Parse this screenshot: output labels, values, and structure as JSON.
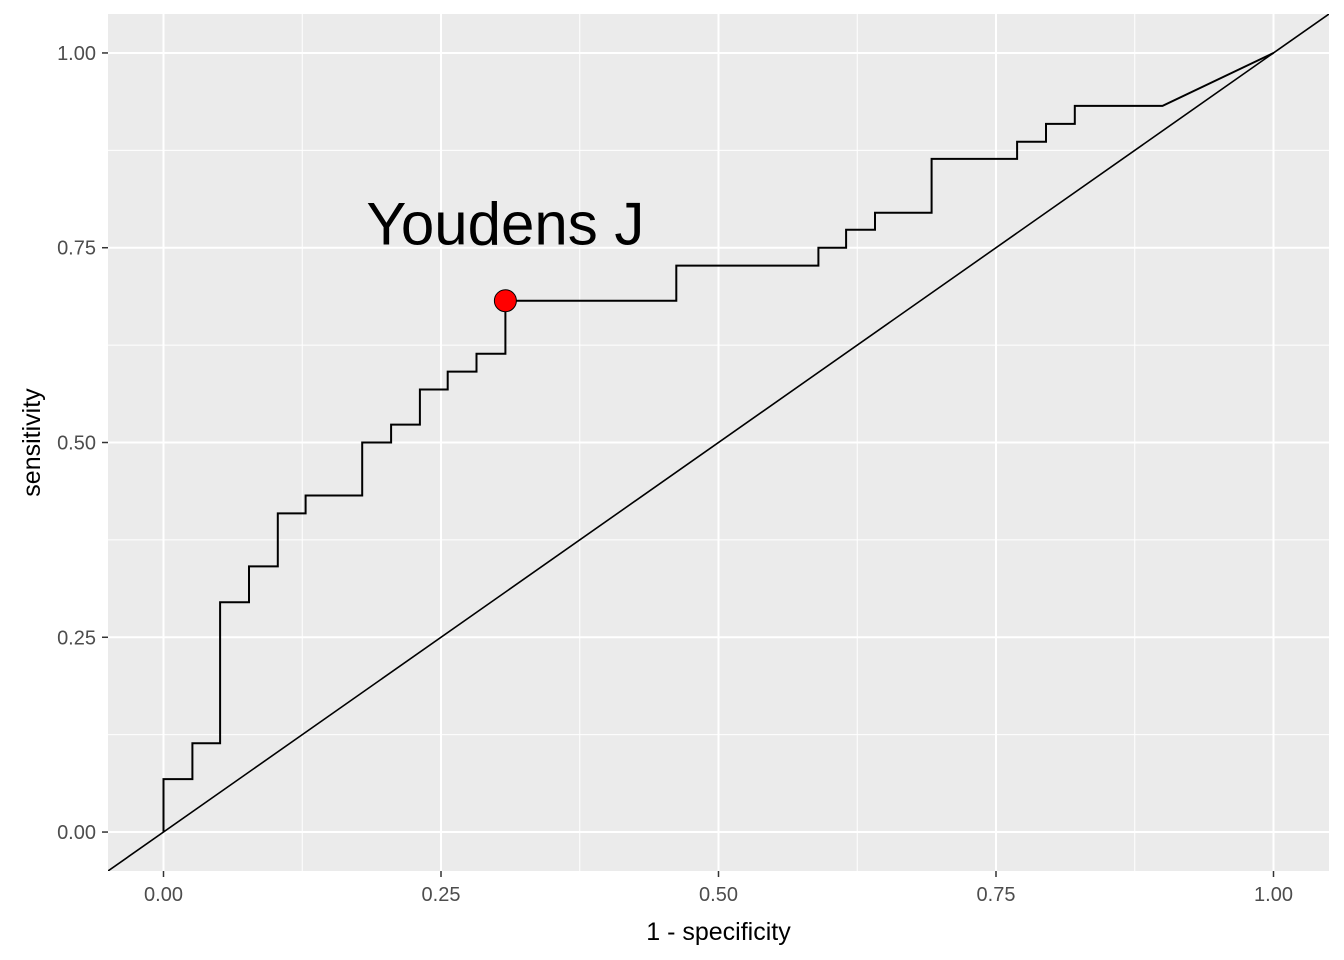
{
  "chart_data": {
    "type": "line",
    "title": "",
    "xlabel": "1 - specificity",
    "ylabel": "sensitivity",
    "xlim": [
      -0.05,
      1.05
    ],
    "ylim": [
      -0.05,
      1.05
    ],
    "x_ticks": [
      0,
      0.25,
      0.5,
      0.75,
      1
    ],
    "x_tick_labels": [
      "0.00",
      "0.25",
      "0.50",
      "0.75",
      "1.00"
    ],
    "y_ticks": [
      0,
      0.25,
      0.5,
      0.75,
      1
    ],
    "y_tick_labels": [
      "0.00",
      "0.25",
      "0.50",
      "0.75",
      "1.00"
    ],
    "grid": true,
    "background": "#ebebeb",
    "series": [
      {
        "kind": "step",
        "color": "#000000",
        "points": [
          [
            0,
            0
          ],
          [
            0,
            0.068
          ],
          [
            0.026,
            0.068
          ],
          [
            0.026,
            0.114
          ],
          [
            0.051,
            0.114
          ],
          [
            0.051,
            0.295
          ],
          [
            0.077,
            0.295
          ],
          [
            0.077,
            0.341
          ],
          [
            0.103,
            0.341
          ],
          [
            0.103,
            0.409
          ],
          [
            0.128,
            0.409
          ],
          [
            0.128,
            0.432
          ],
          [
            0.179,
            0.432
          ],
          [
            0.179,
            0.5
          ],
          [
            0.205,
            0.5
          ],
          [
            0.205,
            0.523
          ],
          [
            0.231,
            0.523
          ],
          [
            0.231,
            0.568
          ],
          [
            0.256,
            0.568
          ],
          [
            0.256,
            0.591
          ],
          [
            0.282,
            0.591
          ],
          [
            0.282,
            0.614
          ],
          [
            0.308,
            0.614
          ],
          [
            0.308,
            0.682
          ],
          [
            0.462,
            0.682
          ],
          [
            0.462,
            0.727
          ],
          [
            0.59,
            0.727
          ],
          [
            0.59,
            0.75
          ],
          [
            0.615,
            0.75
          ],
          [
            0.615,
            0.773
          ],
          [
            0.641,
            0.773
          ],
          [
            0.641,
            0.795
          ],
          [
            0.692,
            0.795
          ],
          [
            0.692,
            0.864
          ],
          [
            0.769,
            0.864
          ],
          [
            0.769,
            0.886
          ],
          [
            0.795,
            0.886
          ],
          [
            0.795,
            0.909
          ],
          [
            0.821,
            0.909
          ],
          [
            0.821,
            0.932
          ],
          [
            0.9,
            0.932
          ],
          [
            1,
            1
          ]
        ]
      },
      {
        "kind": "reference",
        "color": "#000000",
        "intercept": 0,
        "slope": 1
      }
    ],
    "highlight_point": {
      "x": 0.308,
      "y": 0.682,
      "color": "#ff0000"
    },
    "annotations": [
      {
        "text": "Youdens J",
        "x": 0.308,
        "y": 0.78
      }
    ]
  }
}
